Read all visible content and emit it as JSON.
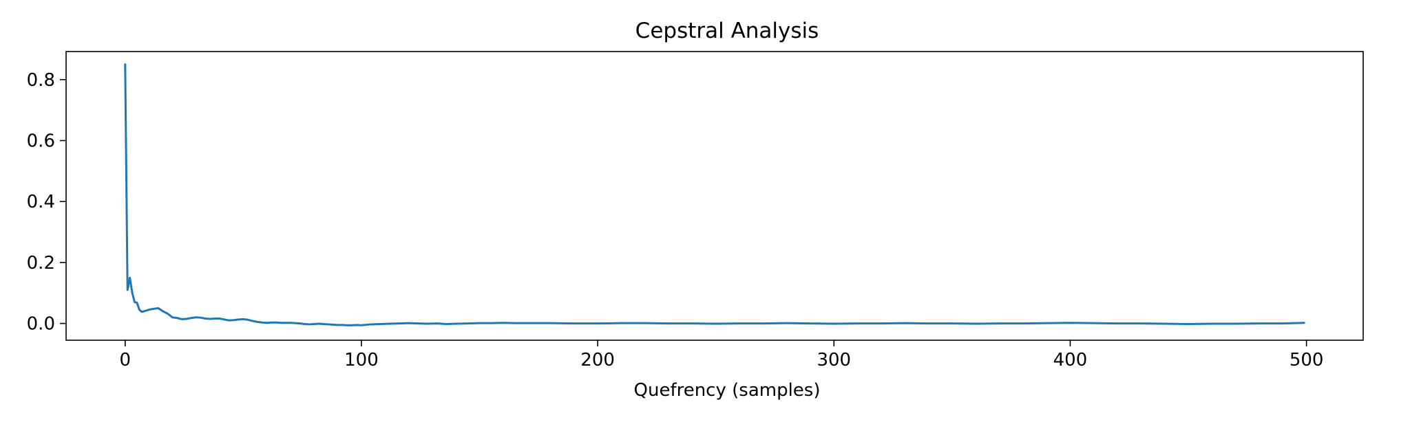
{
  "chart_data": {
    "type": "line",
    "title": "Cepstral Analysis",
    "xlabel": "Quefrency (samples)",
    "ylabel": "",
    "xlim": [
      -25,
      524
    ],
    "ylim": [
      -0.055,
      0.892
    ],
    "xticks": [
      0,
      100,
      200,
      300,
      400,
      500
    ],
    "xtick_labels": [
      "0",
      "100",
      "200",
      "300",
      "400",
      "500"
    ],
    "yticks": [
      0.0,
      0.2,
      0.4,
      0.6,
      0.8
    ],
    "ytick_labels": [
      "0.0",
      "0.2",
      "0.4",
      "0.6",
      "0.8"
    ],
    "grid": false,
    "series": [
      {
        "color": "#1f77b4",
        "x": [
          0,
          1,
          2,
          3,
          4,
          5,
          6,
          7,
          8,
          10,
          12,
          14,
          16,
          18,
          20,
          22,
          24,
          26,
          28,
          30,
          32,
          34,
          36,
          38,
          40,
          42,
          44,
          46,
          48,
          50,
          52,
          54,
          56,
          58,
          60,
          62,
          64,
          66,
          68,
          70,
          72,
          74,
          76,
          78,
          80,
          82,
          84,
          86,
          88,
          90,
          92,
          94,
          96,
          98,
          100,
          104,
          108,
          112,
          116,
          120,
          124,
          128,
          132,
          136,
          140,
          145,
          150,
          155,
          160,
          165,
          170,
          180,
          190,
          200,
          210,
          220,
          230,
          240,
          250,
          260,
          270,
          280,
          290,
          300,
          310,
          320,
          330,
          340,
          350,
          360,
          370,
          380,
          390,
          400,
          410,
          420,
          430,
          440,
          450,
          460,
          470,
          480,
          490,
          495,
          499
        ],
        "y": [
          0.85,
          0.11,
          0.15,
          0.1,
          0.07,
          0.068,
          0.045,
          0.038,
          0.04,
          0.045,
          0.048,
          0.05,
          0.04,
          0.032,
          0.02,
          0.018,
          0.014,
          0.015,
          0.018,
          0.02,
          0.019,
          0.016,
          0.015,
          0.016,
          0.016,
          0.013,
          0.01,
          0.011,
          0.013,
          0.014,
          0.012,
          0.008,
          0.005,
          0.003,
          0.002,
          0.003,
          0.003,
          0.002,
          0.002,
          0.002,
          0.001,
          0.0,
          -0.002,
          -0.003,
          -0.002,
          -0.001,
          -0.002,
          -0.003,
          -0.004,
          -0.005,
          -0.005,
          -0.006,
          -0.006,
          -0.005,
          -0.006,
          -0.003,
          -0.002,
          -0.001,
          0.0,
          0.001,
          0.0,
          -0.001,
          0.0,
          -0.002,
          -0.001,
          0.0,
          0.001,
          0.001,
          0.002,
          0.001,
          0.001,
          0.001,
          0.0,
          0.0,
          0.001,
          0.001,
          0.0,
          0.0,
          -0.001,
          0.0,
          0.0,
          0.001,
          0.0,
          -0.001,
          0.0,
          0.0,
          0.001,
          0.0,
          0.0,
          -0.001,
          0.0,
          0.0,
          0.001,
          0.002,
          0.001,
          0.0,
          0.0,
          -0.001,
          -0.002,
          -0.001,
          -0.001,
          0.0,
          0.0,
          0.001,
          0.002
        ]
      }
    ]
  }
}
